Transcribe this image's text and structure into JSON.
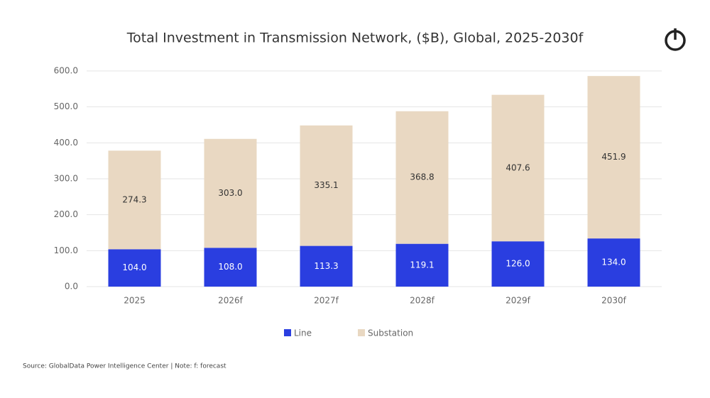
{
  "chart_data": {
    "type": "stacked_bar",
    "title": "Total Investment in Transmission Network, ($B), Global, 2025-2030f",
    "categories": [
      "2025",
      "2026f",
      "2027f",
      "2028f",
      "2029f",
      "2030f"
    ],
    "series": [
      {
        "name": "Line",
        "color": "#2a3ee0",
        "values": [
          104.0,
          108.0,
          113.3,
          119.1,
          126.0,
          134.0
        ],
        "value_labels": [
          "104.0",
          "108.0",
          "113.3",
          "119.1",
          "126.0",
          "134.0"
        ]
      },
      {
        "name": "Substation",
        "color": "#e9d8c2",
        "values": [
          274.3,
          303.0,
          335.1,
          368.8,
          407.6,
          451.9
        ],
        "value_labels": [
          "274.3",
          "303.0",
          "335.1",
          "368.8",
          "407.6",
          "451.9"
        ]
      }
    ],
    "ylim": [
      0,
      600
    ],
    "yticks": [
      {
        "value": 0,
        "label": "0.0"
      },
      {
        "value": 100,
        "label": "100.0"
      },
      {
        "value": 200,
        "label": "200.0"
      },
      {
        "value": 300,
        "label": "300.0"
      },
      {
        "value": 400,
        "label": "400.0"
      },
      {
        "value": 500,
        "label": "500.0"
      },
      {
        "value": 600,
        "label": "600.0"
      }
    ],
    "grid": true,
    "legend": "bottom",
    "source": "Source: GlobalData Power Intelligence Center | Note: f: forecast"
  }
}
